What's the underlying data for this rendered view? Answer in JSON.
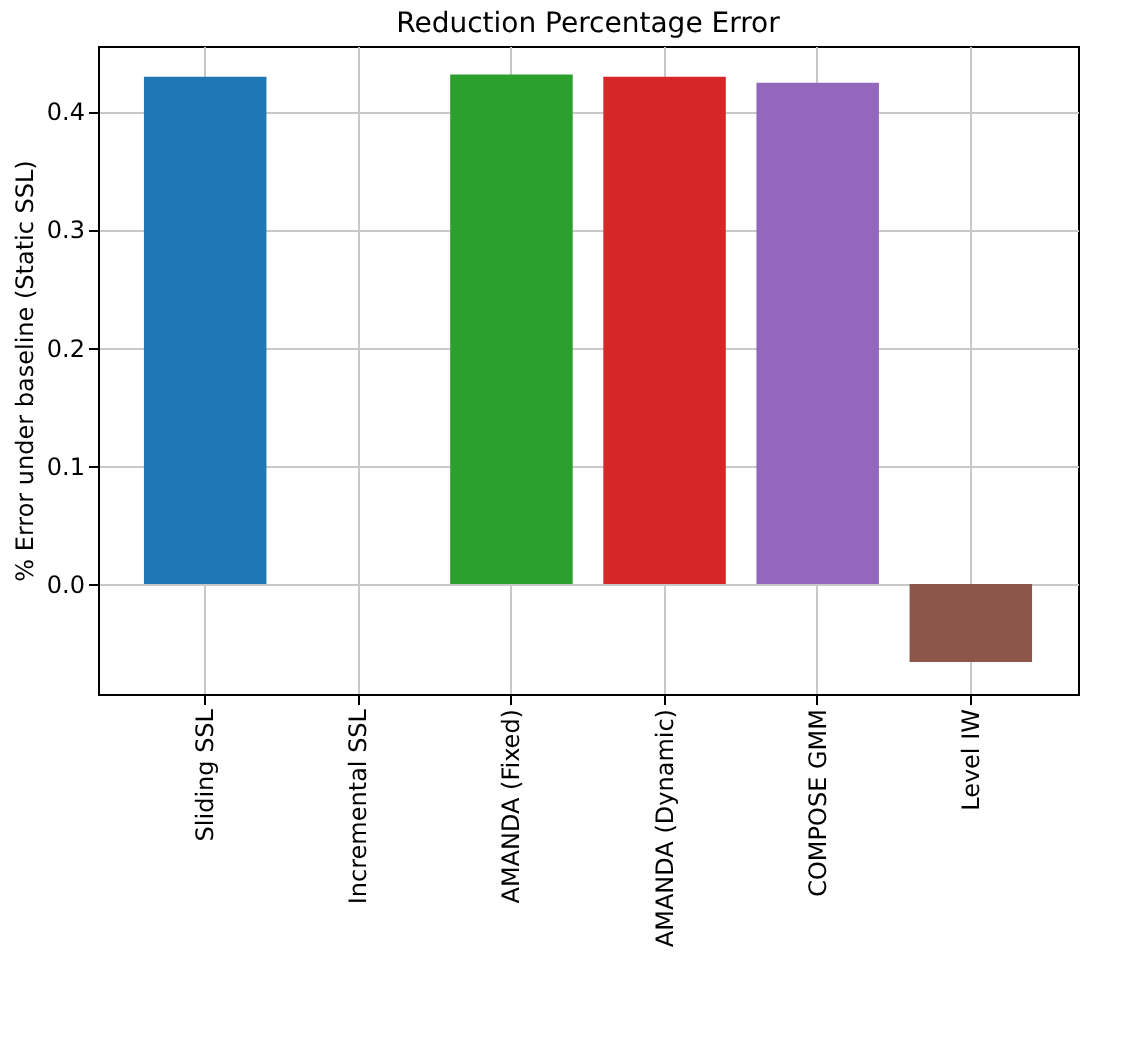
{
  "chart_data": {
    "type": "bar",
    "title": "Reduction Percentage Error",
    "ylabel": "% Error under baseline (Static SSL)",
    "categories": [
      "Sliding SSL",
      "Incremental SSL",
      "AMANDA (Fixed)",
      "AMANDA (Dynamic)",
      "COMPOSE GMM",
      "Level IW"
    ],
    "values": [
      0.429,
      0,
      0.431,
      0.429,
      0.424,
      -0.066
    ],
    "colors": [
      "#1f77b4",
      "#ff7f0e",
      "#2ca02c",
      "#d62728",
      "#9467bd",
      "#8c564b"
    ],
    "ylim": [
      -0.093,
      0.455
    ],
    "yticks": [
      {
        "value": 0,
        "label": "0.0"
      },
      0.1,
      0.2,
      0.3,
      0.4
    ],
    "grid": true,
    "legend": false
  }
}
